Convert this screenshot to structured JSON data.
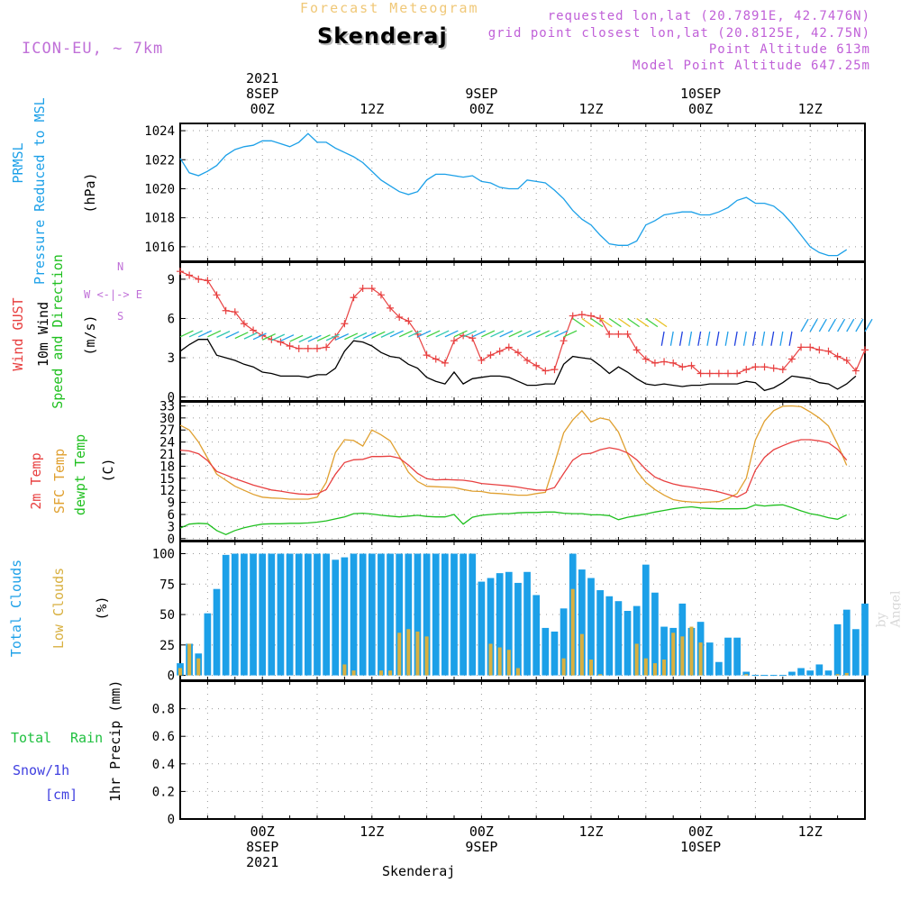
{
  "header": {
    "subtitle": "Forecast Meteogram",
    "location": "Skenderaj",
    "model": "ICON-EU, ~ 7km",
    "requested": "requested lon,lat (20.7891E, 42.7476N)",
    "grid_point": "grid point closest lon,lat (20.8125E, 42.75N)",
    "point_altitude": "Point Altitude 613m",
    "model_altitude": "Model Point Altitude 647.25m",
    "footer_location": "Skenderaj",
    "watermark": "by Angel"
  },
  "time_axis": {
    "top_dates": [
      {
        "hour": 0,
        "lines": [
          "2021",
          "8SEP",
          "00Z"
        ]
      },
      {
        "hour": 12,
        "lines": [
          "",
          "",
          "12Z"
        ]
      },
      {
        "hour": 24,
        "lines": [
          "",
          "9SEP",
          "00Z"
        ]
      },
      {
        "hour": 36,
        "lines": [
          "",
          "",
          "12Z"
        ]
      },
      {
        "hour": 48,
        "lines": [
          "",
          "10SEP",
          "00Z"
        ]
      },
      {
        "hour": 60,
        "lines": [
          "",
          "",
          "12Z"
        ]
      }
    ],
    "bottom_dates": [
      {
        "hour": 0,
        "lines": [
          "00Z",
          "8SEP",
          "2021"
        ]
      },
      {
        "hour": 12,
        "lines": [
          "12Z",
          "",
          ""
        ]
      },
      {
        "hour": 24,
        "lines": [
          "00Z",
          "9SEP",
          ""
        ]
      },
      {
        "hour": 36,
        "lines": [
          "12Z",
          "",
          ""
        ]
      },
      {
        "hour": 48,
        "lines": [
          "00Z",
          "10SEP",
          ""
        ]
      },
      {
        "hour": 60,
        "lines": [
          "12Z",
          "",
          ""
        ]
      }
    ]
  },
  "panel_labels": {
    "pressure": {
      "l1": "PRMSL",
      "l2": "Pressure Reduced to MSL",
      "unit": "(hPa)"
    },
    "wind": {
      "l1": "Wind GUST",
      "l2": "10m Wind",
      "l3": "Speed and Direction",
      "unit": "(m/s)",
      "compass_n": "N",
      "compass_s": "S",
      "compass_we": "W <-|-> E"
    },
    "temp": {
      "l1": "2m Temp",
      "l2": "SFC Temp",
      "l3": "dewpt Temp",
      "unit": "(C)"
    },
    "clouds": {
      "l1": "Total Clouds",
      "l2": "Low Clouds",
      "unit": "(%)"
    },
    "precip": {
      "l1": "Total",
      "l1b": "Rain",
      "l2": "Snow/1h",
      "l3": "[cm]",
      "unit": "1hr Precip (mm)"
    }
  },
  "colors": {
    "pressure": "#1ca0e8",
    "gust": "#e84040",
    "wind": "#000000",
    "t2m": "#e84040",
    "sfc": "#e0a030",
    "dewpt": "#20c020",
    "total_clouds": "#1ca0e8",
    "low_clouds": "#d8b040",
    "rain": "#20c040",
    "snow": "#4040e0",
    "model": "#c070d8",
    "info": "#c060d8"
  },
  "chart_data": [
    {
      "type": "line",
      "name": "pressure",
      "x_hours": [
        -9,
        -8,
        -7,
        -6,
        -5,
        -4,
        -3,
        -2,
        -1,
        0,
        1,
        2,
        3,
        4,
        5,
        6,
        7,
        8,
        9,
        10,
        11,
        12,
        13,
        14,
        15,
        16,
        17,
        18,
        19,
        20,
        21,
        22,
        23,
        24,
        25,
        26,
        27,
        28,
        29,
        30,
        31,
        32,
        33,
        34,
        35,
        36,
        37,
        38,
        39,
        40,
        41,
        42,
        43,
        44,
        45,
        46,
        47,
        48,
        49,
        50,
        51,
        52,
        53,
        54,
        55,
        56,
        57,
        58,
        59,
        60,
        61,
        62,
        63,
        64,
        65,
        66
      ],
      "series": [
        {
          "values": [
            1022.1,
            1021.1,
            1020.9,
            1021.2,
            1021.6,
            1022.3,
            1022.7,
            1022.9,
            1023.0,
            1023.3,
            1023.3,
            1023.1,
            1022.9,
            1023.2,
            1023.8,
            1023.2,
            1023.2,
            1022.8,
            1022.5,
            1022.2,
            1021.8,
            1021.2,
            1020.6,
            1020.2,
            1019.8,
            1019.6,
            1019.8,
            1020.6,
            1021.0,
            1021.0,
            1020.9,
            1020.8,
            1020.9,
            1020.5,
            1020.4,
            1020.1,
            1020.0,
            1020.0,
            1020.6,
            1020.5,
            1020.4,
            1019.9,
            1019.3,
            1018.5,
            1017.9,
            1017.5,
            1016.8,
            1016.2,
            1016.1,
            1016.1,
            1016.4,
            1017.5,
            1017.8,
            1018.2,
            1018.3,
            1018.4,
            1018.4,
            1018.2,
            1018.2,
            1018.4,
            1018.7,
            1019.2,
            1019.4,
            1019.0,
            1019.0,
            1018.8,
            1018.3,
            1017.6,
            1016.8,
            1016.0,
            1015.6,
            1015.4,
            1015.4,
            1015.8
          ]
        }
      ],
      "ylim": [
        1015,
        1024.5
      ],
      "yticks": [
        1016,
        1018,
        1020,
        1022,
        1024
      ]
    },
    {
      "type": "line",
      "name": "wind",
      "x_hours": [
        -9,
        -8,
        -7,
        -6,
        -5,
        -4,
        -3,
        -2,
        -1,
        0,
        1,
        2,
        3,
        4,
        5,
        6,
        7,
        8,
        9,
        10,
        11,
        12,
        13,
        14,
        15,
        16,
        17,
        18,
        19,
        20,
        21,
        22,
        23,
        24,
        25,
        26,
        27,
        28,
        29,
        30,
        31,
        32,
        33,
        34,
        35,
        36,
        37,
        38,
        39,
        40,
        41,
        42,
        43,
        44,
        45,
        46,
        47,
        48,
        49,
        50,
        51,
        52,
        53,
        54,
        55,
        56,
        57,
        58,
        59,
        60,
        61,
        62,
        63,
        64,
        65,
        66
      ],
      "series": [
        {
          "values": [
            9.6,
            9.3,
            9.0,
            8.9,
            7.8,
            6.6,
            6.5,
            5.6,
            5.1,
            4.7,
            4.4,
            4.2,
            3.9,
            3.7,
            3.7,
            3.7,
            3.8,
            4.6,
            5.6,
            7.6,
            8.3,
            8.3,
            7.8,
            6.8,
            6.1,
            5.8,
            4.8,
            3.2,
            2.9,
            2.6,
            4.3,
            4.7,
            4.5,
            2.8,
            3.2,
            3.5,
            3.8,
            3.4,
            2.8,
            2.4,
            2.0,
            2.1,
            4.3,
            6.2,
            6.3,
            6.2,
            6.0,
            4.8,
            4.8,
            4.8,
            3.6,
            2.9,
            2.6,
            2.7,
            2.6,
            2.3,
            2.4,
            1.8,
            1.8,
            1.8,
            1.8,
            1.8,
            2.1,
            2.3,
            2.3,
            2.2,
            2.1,
            2.9,
            3.8,
            3.8,
            3.6,
            3.5,
            3.1,
            2.8,
            2.0,
            3.6
          ]
        },
        {
          "values": [
            3.5,
            4.0,
            4.4,
            4.4,
            3.2,
            3.0,
            2.8,
            2.5,
            2.3,
            1.9,
            1.8,
            1.6,
            1.6,
            1.6,
            1.5,
            1.7,
            1.7,
            2.2,
            3.5,
            4.3,
            4.2,
            3.9,
            3.4,
            3.1,
            3.0,
            2.5,
            2.2,
            1.5,
            1.2,
            1.0,
            1.9,
            1.0,
            1.4,
            1.5,
            1.6,
            1.6,
            1.5,
            1.2,
            0.9,
            0.9,
            1.0,
            1.0,
            2.5,
            3.1,
            3.0,
            2.9,
            2.4,
            1.8,
            2.3,
            1.9,
            1.4,
            1.0,
            0.9,
            1.0,
            0.9,
            0.8,
            0.9,
            0.9,
            1.0,
            1.0,
            1.0,
            1.0,
            1.2,
            1.1,
            0.5,
            0.7,
            1.1,
            1.6,
            1.5,
            1.4,
            1.1,
            1.0,
            0.6,
            1.0,
            1.6
          ]
        }
      ],
      "ylim": [
        -0.3,
        10.3
      ],
      "yticks": [
        0,
        3,
        6,
        9
      ]
    },
    {
      "type": "line",
      "name": "temperature",
      "x_hours": [
        -9,
        -8,
        -7,
        -6,
        -5,
        -4,
        -3,
        -2,
        -1,
        0,
        1,
        2,
        3,
        4,
        5,
        6,
        7,
        8,
        9,
        10,
        11,
        12,
        13,
        14,
        15,
        16,
        17,
        18,
        19,
        20,
        21,
        22,
        23,
        24,
        25,
        26,
        27,
        28,
        29,
        30,
        31,
        32,
        33,
        34,
        35,
        36,
        37,
        38,
        39,
        40,
        41,
        42,
        43,
        44,
        45,
        46,
        47,
        48,
        49,
        50,
        51,
        52,
        53,
        54,
        55,
        56,
        57,
        58,
        59,
        60,
        61,
        62,
        63,
        64,
        65,
        66
      ],
      "series": [
        {
          "values": [
            22.0,
            21.8,
            21.1,
            19.4,
            16.7,
            15.8,
            14.9,
            14.1,
            13.3,
            12.7,
            12.1,
            11.8,
            11.4,
            11.1,
            11.0,
            11.1,
            12.2,
            16.0,
            18.9,
            19.6,
            19.7,
            20.4,
            20.4,
            20.5,
            20.0,
            18.3,
            16.2,
            14.9,
            14.6,
            14.7,
            14.6,
            14.5,
            14.2,
            13.7,
            13.5,
            13.3,
            13.1,
            12.8,
            12.4,
            12.1,
            12.0,
            12.7,
            16.2,
            19.5,
            21.0,
            21.2,
            22.1,
            22.6,
            22.2,
            21.3,
            19.6,
            17.2,
            15.3,
            14.3,
            13.6,
            13.1,
            12.8,
            12.4,
            12.1,
            11.6,
            11.0,
            10.3,
            11.5,
            17.0,
            20.2,
            22.1,
            23.1,
            24.0,
            24.6,
            24.6,
            24.3,
            23.8,
            22.2,
            19.5
          ]
        },
        {
          "values": [
            28.2,
            27.0,
            24.0,
            20.0,
            16.0,
            14.5,
            13.0,
            12.0,
            11.0,
            10.3,
            10.1,
            10.0,
            9.8,
            9.8,
            9.8,
            10.3,
            14.0,
            21.4,
            24.6,
            24.4,
            23.0,
            27.0,
            25.8,
            24.3,
            20.5,
            16.5,
            14.2,
            13.0,
            12.9,
            12.8,
            12.7,
            12.2,
            11.8,
            11.7,
            11.3,
            11.2,
            11.0,
            10.8,
            10.8,
            11.2,
            11.5,
            18.7,
            26.3,
            29.5,
            31.8,
            29.0,
            30.0,
            29.5,
            26.5,
            21.0,
            16.8,
            14.0,
            12.2,
            10.8,
            9.7,
            9.3,
            9.1,
            9.0,
            9.1,
            9.2,
            10.0,
            11.2,
            15.0,
            24.5,
            29.2,
            31.8,
            32.9,
            33.0,
            32.8,
            31.5,
            30.0,
            28.0,
            23.5,
            18.2
          ]
        },
        {
          "values": [
            2.6,
            3.6,
            3.8,
            3.7,
            2.0,
            1.0,
            2.0,
            2.7,
            3.2,
            3.6,
            3.7,
            3.7,
            3.8,
            3.8,
            3.9,
            4.1,
            4.4,
            4.9,
            5.4,
            6.2,
            6.3,
            6.1,
            5.8,
            5.6,
            5.4,
            5.6,
            5.8,
            5.5,
            5.4,
            5.4,
            6.0,
            3.6,
            5.3,
            5.8,
            6.0,
            6.2,
            6.2,
            6.4,
            6.5,
            6.5,
            6.6,
            6.6,
            6.3,
            6.2,
            6.2,
            5.9,
            5.9,
            5.7,
            4.7,
            5.3,
            5.7,
            6.1,
            6.6,
            7.0,
            7.4,
            7.7,
            7.9,
            7.6,
            7.5,
            7.4,
            7.4,
            7.4,
            7.5,
            8.4,
            8.1,
            8.3,
            8.4,
            7.7,
            6.9,
            6.2,
            5.8,
            5.2,
            4.8,
            5.9
          ]
        }
      ],
      "ylim": [
        -0.5,
        34
      ],
      "yticks": [
        0,
        3,
        6,
        9,
        12,
        15,
        18,
        21,
        24,
        27,
        30,
        33
      ]
    },
    {
      "type": "bar",
      "name": "clouds",
      "x_hours": [
        -9,
        -8,
        -7,
        -6,
        -5,
        -4,
        -3,
        -2,
        -1,
        0,
        1,
        2,
        3,
        4,
        5,
        6,
        7,
        8,
        9,
        10,
        11,
        12,
        13,
        14,
        15,
        16,
        17,
        18,
        19,
        20,
        21,
        22,
        23,
        24,
        25,
        26,
        27,
        28,
        29,
        30,
        31,
        32,
        33,
        34,
        35,
        36,
        37,
        38,
        39,
        40,
        41,
        42,
        43,
        44,
        45,
        46,
        47,
        48,
        49,
        50,
        51,
        52,
        53,
        54,
        55,
        56,
        57,
        58,
        59,
        60,
        61,
        62,
        63,
        64,
        65,
        66
      ],
      "series": [
        {
          "values": [
            10,
            26,
            18,
            51,
            71,
            99,
            100,
            100,
            100,
            100,
            100,
            100,
            100,
            100,
            100,
            100,
            100,
            95,
            97,
            100,
            100,
            100,
            100,
            100,
            100,
            100,
            100,
            100,
            100,
            100,
            100,
            100,
            100,
            77,
            80,
            84,
            85,
            76,
            85,
            66,
            39,
            36,
            55,
            100,
            87,
            80,
            70,
            65,
            61,
            53,
            57,
            91,
            68,
            40,
            39,
            59,
            39,
            44,
            27,
            11,
            31,
            31,
            3,
            0,
            0,
            0,
            0,
            3,
            6,
            4,
            9,
            4,
            42,
            54,
            38,
            59
          ]
        },
        {
          "values": [
            6,
            26,
            14,
            0,
            0,
            0,
            0,
            0,
            0,
            0,
            0,
            0,
            0,
            0,
            0,
            0,
            0,
            0,
            9,
            4,
            0,
            0,
            4,
            4,
            35,
            38,
            36,
            32,
            0,
            0,
            0,
            0,
            0,
            0,
            26,
            23,
            21,
            6,
            0,
            0,
            0,
            0,
            14,
            71,
            34,
            13,
            1,
            0,
            0,
            0,
            26,
            14,
            10,
            13,
            35,
            32,
            40,
            27,
            0,
            0,
            0,
            0,
            1,
            0,
            0,
            0,
            0,
            0,
            0,
            0,
            0,
            0,
            1,
            2,
            0,
            0
          ]
        }
      ],
      "ylim": [
        -4,
        110
      ],
      "yticks": [
        0,
        25,
        50,
        75,
        100
      ]
    },
    {
      "type": "bar",
      "name": "precip",
      "x_hours": [],
      "series": [],
      "ylim": [
        0,
        1.0
      ],
      "yticks": [
        0,
        0.2,
        0.4,
        0.6,
        0.8
      ]
    }
  ]
}
